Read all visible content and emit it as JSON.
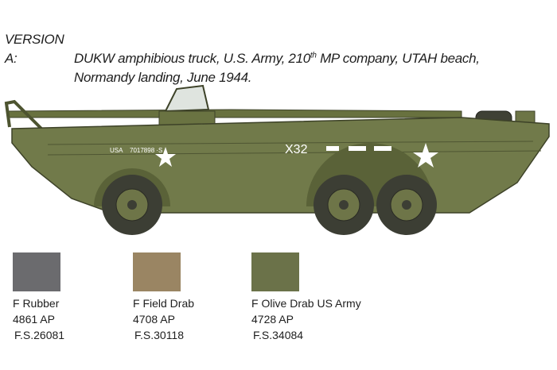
{
  "title": {
    "version_label": "VERSION A:",
    "line1_pre": "DUKW amphibious truck, U.S. Army, 210",
    "line1_sup": "th",
    "line1_post": " MP company, UTAH beach,",
    "line2": "Normandy landing, June 1944."
  },
  "vehicle_markings": {
    "usa": "USA",
    "serial": "7017898 ·S",
    "unit_code": "X32"
  },
  "colors": [
    {
      "name": "F Rubber",
      "code": "4861 AP",
      "fs": "F.S.26081",
      "hex": "#6b6b6e"
    },
    {
      "name": "F Field Drab",
      "code": "4708 AP",
      "fs": "F.S.30118",
      "hex": "#9a8563"
    },
    {
      "name": "F Olive Drab US Army",
      "code": "4728 AP",
      "fs": "F.S.34084",
      "hex": "#6b7249"
    }
  ],
  "hull_color": "#717a4a"
}
